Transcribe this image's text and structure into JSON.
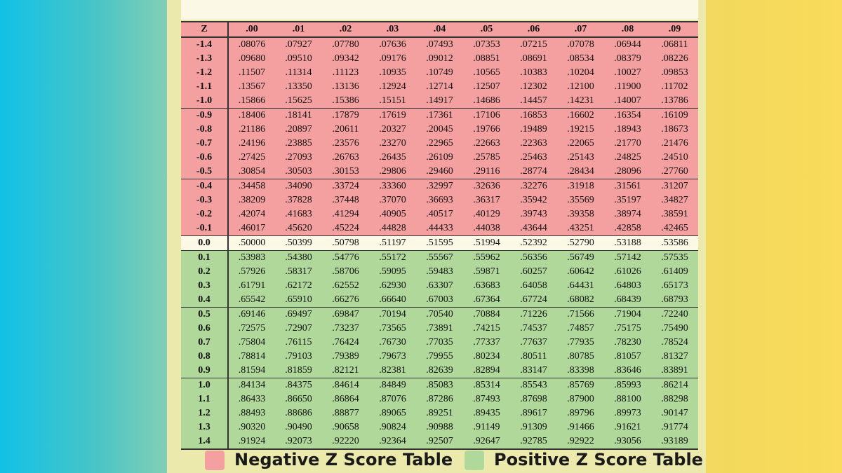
{
  "colors": {
    "negative": "#f4a0a0",
    "zero": "#fbf8e6",
    "positive": "#b0d89a"
  },
  "table": {
    "header_z": "Z",
    "columns": [
      ".00",
      ".01",
      ".02",
      ".03",
      ".04",
      ".05",
      ".06",
      ".07",
      ".08",
      ".09"
    ],
    "rows": [
      {
        "z": "-1.4",
        "sign": "neg",
        "values": [
          ".08076",
          ".07927",
          ".07780",
          ".07636",
          ".07493",
          ".07353",
          ".07215",
          ".07078",
          ".06944",
          ".06811"
        ]
      },
      {
        "z": "-1.3",
        "sign": "neg",
        "values": [
          ".09680",
          ".09510",
          ".09342",
          ".09176",
          ".09012",
          ".08851",
          ".08691",
          ".08534",
          ".08379",
          ".08226"
        ]
      },
      {
        "z": "-1.2",
        "sign": "neg",
        "values": [
          ".11507",
          ".11314",
          ".11123",
          ".10935",
          ".10749",
          ".10565",
          ".10383",
          ".10204",
          ".10027",
          ".09853"
        ]
      },
      {
        "z": "-1.1",
        "sign": "neg",
        "values": [
          ".13567",
          ".13350",
          ".13136",
          ".12924",
          ".12714",
          ".12507",
          ".12302",
          ".12100",
          ".11900",
          ".11702"
        ]
      },
      {
        "z": "-1.0",
        "sign": "neg",
        "values": [
          ".15866",
          ".15625",
          ".15386",
          ".15151",
          ".14917",
          ".14686",
          ".14457",
          ".14231",
          ".14007",
          ".13786"
        ]
      },
      {
        "z": "-0.9",
        "sign": "neg",
        "values": [
          ".18406",
          ".18141",
          ".17879",
          ".17619",
          ".17361",
          ".17106",
          ".16853",
          ".16602",
          ".16354",
          ".16109"
        ]
      },
      {
        "z": "-0.8",
        "sign": "neg",
        "values": [
          ".21186",
          ".20897",
          ".20611",
          ".20327",
          ".20045",
          ".19766",
          ".19489",
          ".19215",
          ".18943",
          ".18673"
        ]
      },
      {
        "z": "-0.7",
        "sign": "neg",
        "values": [
          ".24196",
          ".23885",
          ".23576",
          ".23270",
          ".22965",
          ".22663",
          ".22363",
          ".22065",
          ".21770",
          ".21476"
        ]
      },
      {
        "z": "-0.6",
        "sign": "neg",
        "values": [
          ".27425",
          ".27093",
          ".26763",
          ".26435",
          ".26109",
          ".25785",
          ".25463",
          ".25143",
          ".24825",
          ".24510"
        ]
      },
      {
        "z": "-0.5",
        "sign": "neg",
        "values": [
          ".30854",
          ".30503",
          ".30153",
          ".29806",
          ".29460",
          ".29116",
          ".28774",
          ".28434",
          ".28096",
          ".27760"
        ]
      },
      {
        "z": "-0.4",
        "sign": "neg",
        "values": [
          ".34458",
          ".34090",
          ".33724",
          ".33360",
          ".32997",
          ".32636",
          ".32276",
          ".31918",
          ".31561",
          ".31207"
        ]
      },
      {
        "z": "-0.3",
        "sign": "neg",
        "values": [
          ".38209",
          ".37828",
          ".37448",
          ".37070",
          ".36693",
          ".36317",
          ".35942",
          ".35569",
          ".35197",
          ".34827"
        ]
      },
      {
        "z": "-0.2",
        "sign": "neg",
        "values": [
          ".42074",
          ".41683",
          ".41294",
          ".40905",
          ".40517",
          ".40129",
          ".39743",
          ".39358",
          ".38974",
          ".38591"
        ]
      },
      {
        "z": "-0.1",
        "sign": "neg",
        "values": [
          ".46017",
          ".45620",
          ".45224",
          ".44828",
          ".44433",
          ".44038",
          ".43644",
          ".43251",
          ".42858",
          ".42465"
        ]
      },
      {
        "z": "0.0",
        "sign": "zero",
        "values": [
          ".50000",
          ".50399",
          ".50798",
          ".51197",
          ".51595",
          ".51994",
          ".52392",
          ".52790",
          ".53188",
          ".53586"
        ]
      },
      {
        "z": "0.1",
        "sign": "pos",
        "values": [
          ".53983",
          ".54380",
          ".54776",
          ".55172",
          ".55567",
          ".55962",
          ".56356",
          ".56749",
          ".57142",
          ".57535"
        ]
      },
      {
        "z": "0.2",
        "sign": "pos",
        "values": [
          ".57926",
          ".58317",
          ".58706",
          ".59095",
          ".59483",
          ".59871",
          ".60257",
          ".60642",
          ".61026",
          ".61409"
        ]
      },
      {
        "z": "0.3",
        "sign": "pos",
        "values": [
          ".61791",
          ".62172",
          ".62552",
          ".62930",
          ".63307",
          ".63683",
          ".64058",
          ".64431",
          ".64803",
          ".65173"
        ]
      },
      {
        "z": "0.4",
        "sign": "pos",
        "values": [
          ".65542",
          ".65910",
          ".66276",
          ".66640",
          ".67003",
          ".67364",
          ".67724",
          ".68082",
          ".68439",
          ".68793"
        ]
      },
      {
        "z": "0.5",
        "sign": "pos",
        "values": [
          ".69146",
          ".69497",
          ".69847",
          ".70194",
          ".70540",
          ".70884",
          ".71226",
          ".71566",
          ".71904",
          ".72240"
        ]
      },
      {
        "z": "0.6",
        "sign": "pos",
        "values": [
          ".72575",
          ".72907",
          ".73237",
          ".73565",
          ".73891",
          ".74215",
          ".74537",
          ".74857",
          ".75175",
          ".75490"
        ]
      },
      {
        "z": "0.7",
        "sign": "pos",
        "values": [
          ".75804",
          ".76115",
          ".76424",
          ".76730",
          ".77035",
          ".77337",
          ".77637",
          ".77935",
          ".78230",
          ".78524"
        ]
      },
      {
        "z": "0.8",
        "sign": "pos",
        "values": [
          ".78814",
          ".79103",
          ".79389",
          ".79673",
          ".79955",
          ".80234",
          ".80511",
          ".80785",
          ".81057",
          ".81327"
        ]
      },
      {
        "z": "0.9",
        "sign": "pos",
        "values": [
          ".81594",
          ".81859",
          ".82121",
          ".82381",
          ".82639",
          ".82894",
          ".83147",
          ".83398",
          ".83646",
          ".83891"
        ]
      },
      {
        "z": "1.0",
        "sign": "pos",
        "values": [
          ".84134",
          ".84375",
          ".84614",
          ".84849",
          ".85083",
          ".85314",
          ".85543",
          ".85769",
          ".85993",
          ".86214"
        ]
      },
      {
        "z": "1.1",
        "sign": "pos",
        "values": [
          ".86433",
          ".86650",
          ".86864",
          ".87076",
          ".87286",
          ".87493",
          ".87698",
          ".87900",
          ".88100",
          ".88298"
        ]
      },
      {
        "z": "1.2",
        "sign": "pos",
        "values": [
          ".88493",
          ".88686",
          ".88877",
          ".89065",
          ".89251",
          ".89435",
          ".89617",
          ".89796",
          ".89973",
          ".90147"
        ]
      },
      {
        "z": "1.3",
        "sign": "pos",
        "values": [
          ".90320",
          ".90490",
          ".90658",
          ".90824",
          ".90988",
          ".91149",
          ".91309",
          ".91466",
          ".91621",
          ".91774"
        ]
      },
      {
        "z": "1.4",
        "sign": "pos",
        "values": [
          ".91924",
          ".92073",
          ".92220",
          ".92364",
          ".92507",
          ".92647",
          ".92785",
          ".92922",
          ".93056",
          ".93189"
        ]
      }
    ]
  },
  "legend": {
    "negative_label": "Negative Z Score Table",
    "positive_label": "Positive Z Score Table"
  }
}
